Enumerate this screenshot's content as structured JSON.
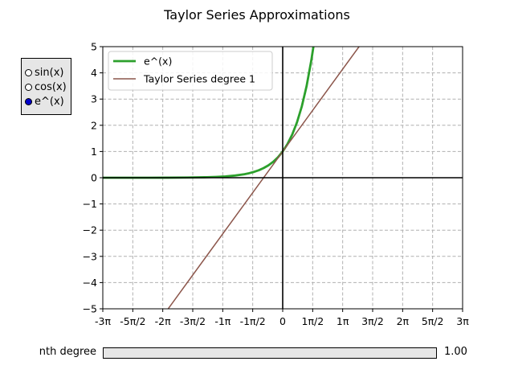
{
  "chart_data": {
    "type": "line",
    "title": "Taylor Series Approximations",
    "xlabel": "",
    "ylabel": "",
    "xlim": [
      -9.42478,
      9.42478
    ],
    "ylim": [
      -5,
      5
    ],
    "x_ticks": [
      {
        "value": -9.42478,
        "label": "-3π"
      },
      {
        "value": -7.85398,
        "label": "-5π/2"
      },
      {
        "value": -6.28319,
        "label": "-2π"
      },
      {
        "value": -4.71239,
        "label": "-3π/2"
      },
      {
        "value": -3.14159,
        "label": "-1π"
      },
      {
        "value": -1.5708,
        "label": "-1π/2"
      },
      {
        "value": 0,
        "label": "0"
      },
      {
        "value": 1.5708,
        "label": "1π/2"
      },
      {
        "value": 3.14159,
        "label": "1π"
      },
      {
        "value": 4.71239,
        "label": "3π/2"
      },
      {
        "value": 6.28319,
        "label": "2π"
      },
      {
        "value": 7.85398,
        "label": "5π/2"
      },
      {
        "value": 9.42478,
        "label": "3π"
      }
    ],
    "y_ticks": [
      {
        "value": -5,
        "label": "−5"
      },
      {
        "value": -4,
        "label": "−4"
      },
      {
        "value": -3,
        "label": "−3"
      },
      {
        "value": -2,
        "label": "−2"
      },
      {
        "value": -1,
        "label": "−1"
      },
      {
        "value": 0,
        "label": "0"
      },
      {
        "value": 1,
        "label": "1"
      },
      {
        "value": 2,
        "label": "2"
      },
      {
        "value": 3,
        "label": "3"
      },
      {
        "value": 4,
        "label": "4"
      },
      {
        "value": 5,
        "label": "5"
      }
    ],
    "grid": true,
    "legend_position": "top-left",
    "series": [
      {
        "name": "e^(x)",
        "color": "#2ca02c",
        "x": [
          -9.42,
          -8,
          -7,
          -6,
          -5,
          -4,
          -3.5,
          -3,
          -2.5,
          -2,
          -1.75,
          -1.5,
          -1.25,
          -1,
          -0.75,
          -0.5,
          -0.25,
          0,
          0.25,
          0.5,
          0.75,
          1,
          1.25,
          1.5,
          1.609
        ],
        "y": [
          0.0001,
          0.0003,
          0.0009,
          0.0025,
          0.0067,
          0.0183,
          0.0302,
          0.0498,
          0.0821,
          0.1353,
          0.1738,
          0.2231,
          0.2865,
          0.3679,
          0.4724,
          0.6065,
          0.7788,
          1,
          1.284,
          1.6487,
          2.117,
          2.7183,
          3.4903,
          4.4817,
          5
        ]
      },
      {
        "name": "Taylor Series degree 1",
        "color": "#8c564b",
        "x": [
          -6,
          4
        ],
        "y": [
          -5,
          5
        ]
      }
    ]
  },
  "radio": {
    "options": [
      "sin(x)",
      "cos(x)",
      "e^(x)"
    ],
    "selected": "e^(x)"
  },
  "slider": {
    "label": "nth degree",
    "value_text": "1.00",
    "value": 1
  }
}
